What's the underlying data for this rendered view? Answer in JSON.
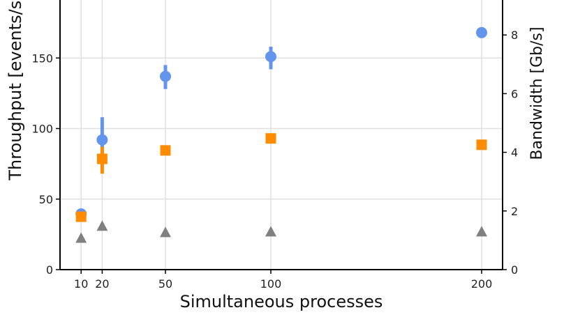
{
  "chart_data": {
    "type": "scatter",
    "title": "",
    "xlabel": "Simultaneous processes",
    "ylabel": "Throughput [events/s]",
    "y2label": "Bandwidth [Gb/s]",
    "x": [
      10,
      20,
      50,
      100,
      200
    ],
    "xticks": [
      10,
      20,
      50,
      100,
      200
    ],
    "xlim": [
      0,
      210
    ],
    "yticks": [
      0,
      50,
      100,
      150
    ],
    "ylim": [
      0,
      191
    ],
    "y2ticks": [
      0,
      2,
      4,
      6,
      8
    ],
    "y2lim": [
      0,
      9.2
    ],
    "grid": true,
    "legend": null,
    "series": [
      {
        "name": "series-circle",
        "marker": "circle",
        "color": "#6495ED",
        "axis": "left",
        "values": [
          39.5,
          92,
          137,
          151,
          168
        ],
        "error_low": [
          39.5,
          75,
          128,
          142,
          168
        ],
        "error_high": [
          39.5,
          108,
          145,
          158,
          168
        ]
      },
      {
        "name": "series-square",
        "marker": "square",
        "color": "#FF8C00",
        "axis": "left",
        "values": [
          37.5,
          78.5,
          84.5,
          93,
          88.5
        ],
        "error_low": [
          37.5,
          68,
          84.5,
          93,
          88.5
        ],
        "error_high": [
          37.5,
          87,
          84.5,
          93,
          88.5
        ]
      },
      {
        "name": "series-triangle",
        "marker": "triangle",
        "color": "#808080",
        "axis": "left",
        "values": [
          22.5,
          31,
          26.5,
          27,
          27
        ]
      }
    ]
  }
}
